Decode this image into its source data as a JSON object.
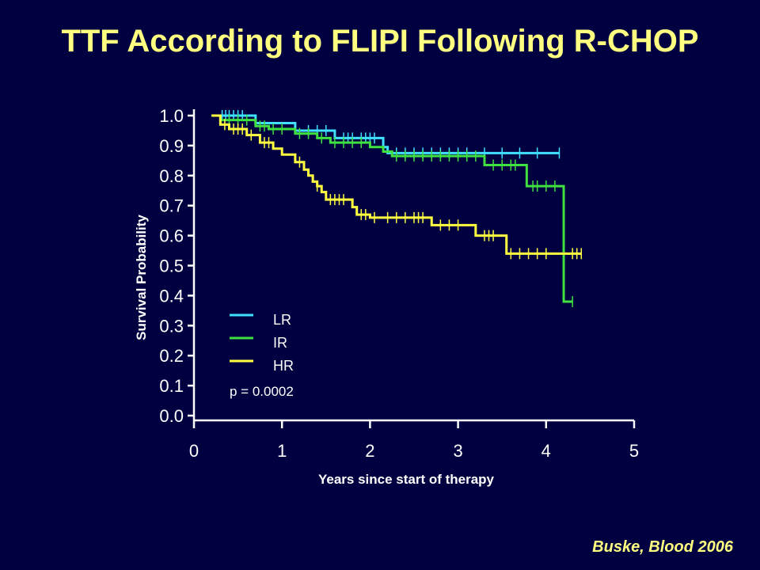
{
  "slide": {
    "title": "TTF According to FLIPI Following R-CHOP",
    "citation": "Buske, Blood 2006"
  },
  "colors": {
    "background": "#000040",
    "title": "#ffff80",
    "axis": "#ffffff"
  },
  "chart_data": {
    "type": "line",
    "title": "",
    "xlabel": "Years since start of therapy",
    "ylabel": "Survival Probability",
    "xlim": [
      0,
      5
    ],
    "ylim": [
      0.0,
      1.0
    ],
    "xticks": [
      "0",
      "1",
      "2",
      "3",
      "4",
      "5"
    ],
    "yticks": [
      "0.0",
      "0.1",
      "0.2",
      "0.3",
      "0.4",
      "0.5",
      "0.6",
      "0.7",
      "0.8",
      "0.9",
      "1.0"
    ],
    "grid": false,
    "legend_position": "lower-left",
    "annotation": "p = 0.0002",
    "series": [
      {
        "name": "LR",
        "color": "#40e0ff",
        "steps": [
          [
            0.2,
            1.0
          ],
          [
            0.7,
            0.975
          ],
          [
            1.15,
            0.95
          ],
          [
            1.6,
            0.925
          ],
          [
            2.15,
            0.895
          ],
          [
            2.2,
            0.875
          ],
          [
            4.15,
            0.875
          ]
        ],
        "censors": [
          0.32,
          0.36,
          0.4,
          0.45,
          0.5,
          0.55,
          1.3,
          1.4,
          1.5,
          1.7,
          1.75,
          1.8,
          1.9,
          1.95,
          2.0,
          2.05,
          2.3,
          2.4,
          2.5,
          2.6,
          2.7,
          2.8,
          2.9,
          3.0,
          3.1,
          3.3,
          3.5,
          3.7,
          3.9,
          4.15
        ]
      },
      {
        "name": "IR",
        "color": "#40e040",
        "steps": [
          [
            0.2,
            1.0
          ],
          [
            0.3,
            0.985
          ],
          [
            0.7,
            0.965
          ],
          [
            0.85,
            0.955
          ],
          [
            1.15,
            0.94
          ],
          [
            1.4,
            0.925
          ],
          [
            1.55,
            0.91
          ],
          [
            2.0,
            0.895
          ],
          [
            2.15,
            0.88
          ],
          [
            2.25,
            0.865
          ],
          [
            3.3,
            0.835
          ],
          [
            3.78,
            0.765
          ],
          [
            4.2,
            0.38
          ],
          [
            4.3,
            0.38
          ]
        ],
        "censors": [
          0.4,
          0.5,
          0.6,
          0.75,
          0.8,
          0.9,
          1.0,
          1.2,
          1.3,
          1.45,
          1.6,
          1.7,
          1.8,
          1.9,
          2.3,
          2.4,
          2.5,
          2.6,
          2.7,
          2.8,
          2.9,
          3.0,
          3.1,
          3.2,
          3.4,
          3.5,
          3.6,
          3.65,
          3.85,
          3.9,
          4.0,
          4.1,
          4.3
        ]
      },
      {
        "name": "HR",
        "color": "#ffff40",
        "steps": [
          [
            0.2,
            1.0
          ],
          [
            0.3,
            0.97
          ],
          [
            0.4,
            0.955
          ],
          [
            0.6,
            0.935
          ],
          [
            0.75,
            0.91
          ],
          [
            0.9,
            0.89
          ],
          [
            1.0,
            0.87
          ],
          [
            1.15,
            0.845
          ],
          [
            1.25,
            0.82
          ],
          [
            1.3,
            0.8
          ],
          [
            1.35,
            0.78
          ],
          [
            1.4,
            0.765
          ],
          [
            1.45,
            0.745
          ],
          [
            1.5,
            0.72
          ],
          [
            1.8,
            0.695
          ],
          [
            1.85,
            0.67
          ],
          [
            2.0,
            0.66
          ],
          [
            2.7,
            0.635
          ],
          [
            3.2,
            0.6
          ],
          [
            3.55,
            0.54
          ],
          [
            4.4,
            0.54
          ]
        ],
        "censors": [
          0.35,
          0.45,
          0.5,
          0.55,
          0.65,
          0.8,
          0.85,
          1.2,
          1.4,
          1.55,
          1.6,
          1.65,
          1.7,
          1.9,
          1.95,
          2.05,
          2.2,
          2.3,
          2.4,
          2.5,
          2.55,
          2.6,
          2.8,
          2.9,
          3.0,
          3.3,
          3.35,
          3.4,
          3.6,
          3.7,
          3.8,
          3.9,
          4.0,
          4.3,
          4.35,
          4.4
        ]
      }
    ]
  }
}
